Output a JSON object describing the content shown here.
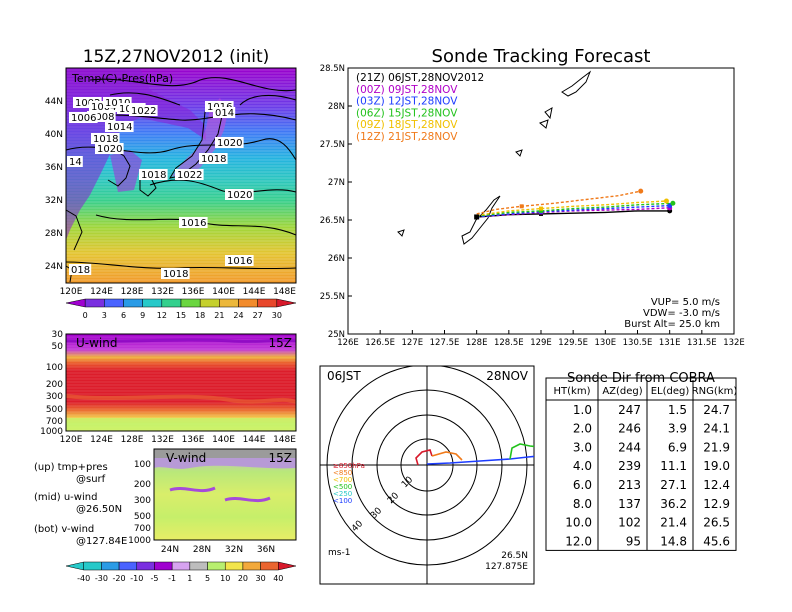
{
  "left": {
    "title": "15Z,27NOV2012 (init)",
    "map_label": "Temp(C)-Pres(hPa)",
    "lat_ticks": [
      "44N",
      "40N",
      "36N",
      "32N",
      "28N",
      "24N"
    ],
    "lon_ticks": [
      "120E",
      "124E",
      "128E",
      "132E",
      "136E",
      "140E",
      "144E",
      "148E"
    ],
    "isobars": [
      "1002",
      "1004",
      "1008",
      "1006",
      "1010",
      "1012",
      "1014",
      "1016",
      "1018",
      "1020",
      "1022",
      "1018",
      "1022",
      "1020",
      "1018",
      "1020",
      "1016",
      "1018",
      "1016",
      "014",
      "018",
      "14"
    ],
    "temp_colorbar": {
      "labels": [
        "0",
        "3",
        "6",
        "9",
        "12",
        "15",
        "18",
        "21",
        "24",
        "27",
        "30"
      ],
      "colors": [
        "#9f00d0",
        "#7a2fe0",
        "#4a63ff",
        "#2a9be6",
        "#27c9c9",
        "#33d08d",
        "#6ad640",
        "#c5d02d",
        "#ecb83b",
        "#f28b2c",
        "#e8472b",
        "#d7192b"
      ]
    },
    "uwind": {
      "label": "U-wind",
      "time": "15Z",
      "y_ticks": [
        "30",
        "50",
        "100",
        "200",
        "300",
        "500",
        "700",
        "1000"
      ],
      "x_ticks": [
        "120E",
        "124E",
        "128E",
        "132E",
        "136E",
        "140E",
        "144E",
        "148E"
      ]
    },
    "vwind": {
      "label": "V-wind",
      "time": "15Z",
      "y_ticks": [
        "100",
        "200",
        "300",
        "500",
        "700",
        "1000"
      ],
      "x_ticks": [
        "24N",
        "28N",
        "32N",
        "36N"
      ]
    },
    "legend": {
      "up": "(up) tmp+pres",
      "up2": "@surf",
      "mid": "(mid) u-wind",
      "mid2": "@26.50N",
      "bot": "(bot) v-wind",
      "bot2": "@127.84E"
    },
    "wind_colorbar": {
      "labels": [
        "-40",
        "-30",
        "-20",
        "-10",
        "-5",
        "-1",
        "1",
        "5",
        "10",
        "20",
        "30",
        "40"
      ],
      "colors": [
        "#27c9c9",
        "#2a9be6",
        "#4a63ff",
        "#7a2fe0",
        "#9f00d0",
        "#d7a3f0",
        "#bdbdbd",
        "#b8ef6f",
        "#f2e54b",
        "#f2a93b",
        "#ea6530",
        "#d7192b"
      ]
    }
  },
  "chart_data": {
    "type": "line",
    "title": "Sonde Tracking Forecast",
    "xlim": [
      126,
      132
    ],
    "ylim": [
      25,
      28.5
    ],
    "x_ticks": [
      "126E",
      "126.5E",
      "127E",
      "127.5E",
      "128E",
      "128.5E",
      "129E",
      "129.5E",
      "130E",
      "130.5E",
      "131E",
      "131.5E",
      "132E"
    ],
    "y_ticks": [
      "28.5N",
      "28N",
      "27.5N",
      "27N",
      "26.5N",
      "26N",
      "25.5N",
      "25N"
    ],
    "launch": [
      128.0,
      26.54
    ],
    "series": [
      {
        "name": "(21Z)  06JST,28NOV2012",
        "color": "#000000",
        "dash": false,
        "points": [
          [
            128.0,
            26.54
          ],
          [
            128.5,
            26.57
          ],
          [
            129.0,
            26.58
          ],
          [
            129.5,
            26.59
          ],
          [
            130.0,
            26.6
          ],
          [
            130.5,
            26.62
          ],
          [
            131.0,
            26.62
          ]
        ]
      },
      {
        "name": "(00Z)  09JST,28NOV",
        "color": "#b000c8",
        "dash": true,
        "points": [
          [
            128.0,
            26.54
          ],
          [
            128.5,
            26.57
          ],
          [
            129.0,
            26.6
          ],
          [
            129.5,
            26.62
          ],
          [
            130.0,
            26.63
          ],
          [
            130.5,
            26.64
          ],
          [
            131.0,
            26.66
          ]
        ]
      },
      {
        "name": "(03Z)  12JST,28NOV",
        "color": "#1c3cff",
        "dash": true,
        "points": [
          [
            128.0,
            26.54
          ],
          [
            128.5,
            26.58
          ],
          [
            129.0,
            26.61
          ],
          [
            129.5,
            26.63
          ],
          [
            130.0,
            26.65
          ],
          [
            130.5,
            26.67
          ],
          [
            131.0,
            26.69
          ]
        ]
      },
      {
        "name": "(06Z)  15JST,28NOV",
        "color": "#22c21c",
        "dash": true,
        "points": [
          [
            128.0,
            26.55
          ],
          [
            128.5,
            26.6
          ],
          [
            129.0,
            26.62
          ],
          [
            129.5,
            26.65
          ],
          [
            130.0,
            26.67
          ],
          [
            130.5,
            26.7
          ],
          [
            131.05,
            26.72
          ]
        ]
      },
      {
        "name": "(09Z)  18JST,28NOV",
        "color": "#f0c000",
        "dash": true,
        "points": [
          [
            128.0,
            26.56
          ],
          [
            128.5,
            26.62
          ],
          [
            129.0,
            26.65
          ],
          [
            129.5,
            26.68
          ],
          [
            130.0,
            26.7
          ],
          [
            130.5,
            26.73
          ],
          [
            130.95,
            26.75
          ]
        ]
      },
      {
        "name": "(12Z)  21JST,28NOV",
        "color": "#f07a1a",
        "dash": true,
        "points": [
          [
            128.0,
            26.58
          ],
          [
            128.3,
            26.64
          ],
          [
            128.7,
            26.68
          ],
          [
            129.2,
            26.72
          ],
          [
            129.7,
            26.77
          ],
          [
            130.2,
            26.82
          ],
          [
            130.55,
            26.88
          ]
        ]
      }
    ],
    "annotations": [
      "VUP=  5.0  m/s",
      "VDW= -3.0  m/s",
      "Burst Alt=  25.0  km"
    ]
  },
  "polar": {
    "time": "06JST",
    "date": "28NOV",
    "ring_labels": [
      "10",
      "20",
      "30",
      "40"
    ],
    "pressure_legend": [
      {
        "label": "≥850hPa",
        "color": "#d7192b"
      },
      {
        "label": "<850",
        "color": "#f07a1a"
      },
      {
        "label": "<700",
        "color": "#f0c000"
      },
      {
        "label": "<500",
        "color": "#22c21c"
      },
      {
        "label": "<250",
        "color": "#27c9c9"
      },
      {
        "label": "<100",
        "color": "#1c3cff"
      }
    ],
    "unit": "ms-1",
    "loc_lat": "26.5N",
    "loc_lon": "127.875E"
  },
  "table": {
    "title": "Sonde Dir from COBRA",
    "headers": [
      "HT(km)",
      "AZ(deg)",
      "EL(deg)",
      "RNG(km)"
    ],
    "rows": [
      [
        "1.0",
        "247",
        "1.5",
        "24.7"
      ],
      [
        "2.0",
        "246",
        "3.9",
        "24.1"
      ],
      [
        "3.0",
        "244",
        "6.9",
        "21.9"
      ],
      [
        "4.0",
        "239",
        "11.1",
        "19.0"
      ],
      [
        "6.0",
        "213",
        "27.1",
        "12.4"
      ],
      [
        "8.0",
        "137",
        "36.2",
        "12.9"
      ],
      [
        "10.0",
        "102",
        "21.4",
        "26.5"
      ],
      [
        "12.0",
        "95",
        "14.8",
        "45.6"
      ]
    ]
  }
}
